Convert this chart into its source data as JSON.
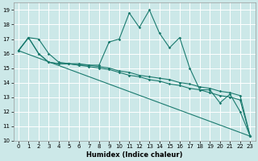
{
  "xlabel": "Humidex (Indice chaleur)",
  "xlim": [
    -0.5,
    23.5
  ],
  "ylim": [
    10,
    19.5
  ],
  "yticks": [
    10,
    11,
    12,
    13,
    14,
    15,
    16,
    17,
    18,
    19
  ],
  "xticks": [
    0,
    1,
    2,
    3,
    4,
    5,
    6,
    7,
    8,
    9,
    10,
    11,
    12,
    13,
    14,
    15,
    16,
    17,
    18,
    19,
    20,
    21,
    22,
    23
  ],
  "bg_color": "#cce8e8",
  "grid_color": "#ffffff",
  "line_color": "#1a7a6e",
  "line1_x": [
    0,
    1,
    2,
    3,
    4,
    5,
    6,
    7,
    8,
    9,
    10,
    11,
    12,
    13,
    14,
    15,
    16,
    17,
    18,
    19,
    20,
    21,
    22,
    23
  ],
  "line1_y": [
    16.2,
    17.1,
    17.0,
    16.0,
    15.4,
    15.3,
    15.3,
    15.2,
    15.2,
    16.8,
    17.0,
    18.8,
    17.8,
    19.0,
    17.4,
    16.4,
    17.1,
    15.0,
    13.5,
    13.5,
    12.6,
    13.2,
    12.0,
    10.3
  ],
  "line2_x": [
    0,
    1,
    2,
    3,
    4,
    5,
    6,
    7,
    8,
    9,
    10,
    11,
    12,
    13,
    14,
    15,
    16,
    17,
    18,
    19,
    20,
    21,
    22,
    23
  ],
  "line2_y": [
    16.2,
    17.1,
    16.0,
    15.4,
    15.3,
    15.3,
    15.2,
    15.2,
    15.1,
    15.0,
    14.8,
    14.7,
    14.5,
    14.4,
    14.3,
    14.2,
    14.0,
    13.9,
    13.7,
    13.6,
    13.4,
    13.3,
    13.1,
    10.3
  ],
  "line3_x": [
    0,
    1,
    2,
    3,
    4,
    5,
    6,
    7,
    8,
    9,
    10,
    11,
    12,
    13,
    14,
    15,
    16,
    17,
    18,
    19,
    20,
    21,
    22,
    23
  ],
  "line3_y": [
    16.2,
    17.1,
    16.0,
    15.4,
    15.3,
    15.3,
    15.2,
    15.1,
    15.0,
    14.9,
    14.7,
    14.5,
    14.4,
    14.2,
    14.1,
    13.9,
    13.8,
    13.6,
    13.5,
    13.3,
    13.1,
    13.0,
    12.8,
    10.3
  ],
  "line4_x": [
    0,
    23
  ],
  "line4_y": [
    16.2,
    10.3
  ],
  "tick_fontsize": 5,
  "xlabel_fontsize": 6
}
